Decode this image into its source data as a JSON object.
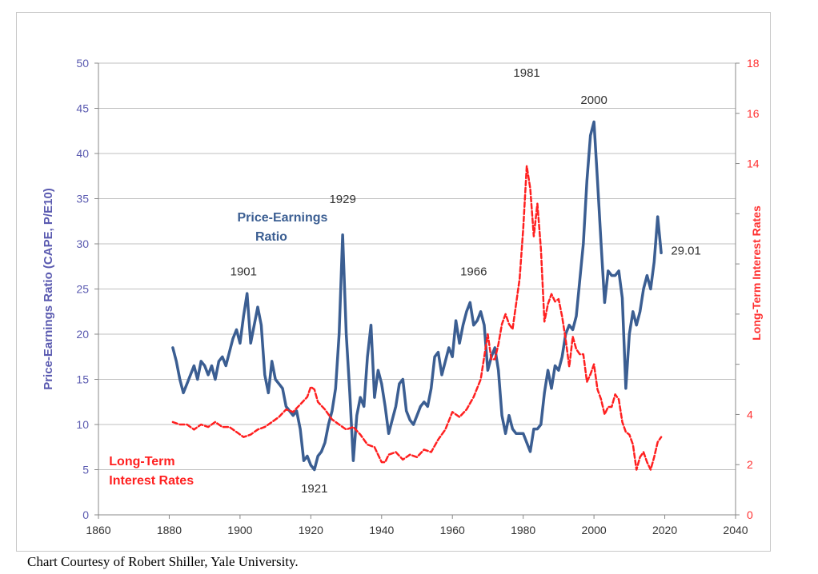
{
  "colors": {
    "pe": "#3B5E92",
    "rates": "#FF2020",
    "left_axis": "#5A5AB0",
    "right_axis": "#FF3030",
    "grid": "#BFBFBF",
    "text": "#333333"
  },
  "credit": "Chart Courtesy of Robert Shiller, Yale University.",
  "chart_data": {
    "type": "line",
    "title": "",
    "xlabel": "",
    "ylabel_left": "Price-Earnings Ratio (CAPE, P/E10)",
    "ylabel_right": "Long-Term Interest Rates",
    "xlim": [
      1860,
      2040
    ],
    "ylim_left": [
      0,
      50
    ],
    "ylim_right": [
      0,
      18
    ],
    "x_ticks": [
      1860,
      1880,
      1900,
      1920,
      1940,
      1960,
      1980,
      2000,
      2020,
      2040
    ],
    "y_ticks_left": [
      0,
      5,
      10,
      15,
      20,
      25,
      30,
      35,
      40,
      45,
      50
    ],
    "y_ticks_right": [
      0,
      2,
      4,
      6,
      8,
      10,
      12,
      14,
      16,
      18
    ],
    "y_ticks_right_labels": [
      "0",
      "2",
      "4",
      "",
      "",
      "",
      "",
      "14",
      "16",
      "18"
    ],
    "grid": true,
    "series": [
      {
        "name": "Price-Earnings Ratio",
        "axis": "left",
        "style": "solid",
        "points": [
          [
            1881,
            18.5
          ],
          [
            1882,
            17
          ],
          [
            1883,
            15
          ],
          [
            1884,
            13.5
          ],
          [
            1885,
            14.5
          ],
          [
            1886,
            15.5
          ],
          [
            1887,
            16.5
          ],
          [
            1888,
            15
          ],
          [
            1889,
            17
          ],
          [
            1890,
            16.5
          ],
          [
            1891,
            15.5
          ],
          [
            1892,
            16.5
          ],
          [
            1893,
            15
          ],
          [
            1894,
            17
          ],
          [
            1895,
            17.5
          ],
          [
            1896,
            16.5
          ],
          [
            1897,
            18
          ],
          [
            1898,
            19.5
          ],
          [
            1899,
            20.5
          ],
          [
            1900,
            19
          ],
          [
            1901,
            22
          ],
          [
            1902,
            24.5
          ],
          [
            1903,
            19
          ],
          [
            1904,
            21
          ],
          [
            1905,
            23
          ],
          [
            1906,
            21
          ],
          [
            1907,
            15.5
          ],
          [
            1908,
            13.5
          ],
          [
            1909,
            17
          ],
          [
            1910,
            15
          ],
          [
            1911,
            14.5
          ],
          [
            1912,
            14
          ],
          [
            1913,
            12
          ],
          [
            1914,
            11.5
          ],
          [
            1915,
            11
          ],
          [
            1916,
            11.5
          ],
          [
            1917,
            9.5
          ],
          [
            1918,
            6
          ],
          [
            1919,
            6.5
          ],
          [
            1920,
            5.5
          ],
          [
            1921,
            5
          ],
          [
            1922,
            6.5
          ],
          [
            1923,
            7
          ],
          [
            1924,
            8
          ],
          [
            1925,
            10
          ],
          [
            1926,
            11.5
          ],
          [
            1927,
            14
          ],
          [
            1928,
            20
          ],
          [
            1929,
            31
          ],
          [
            1930,
            20
          ],
          [
            1931,
            13.5
          ],
          [
            1932,
            6
          ],
          [
            1933,
            11
          ],
          [
            1934,
            13
          ],
          [
            1935,
            12
          ],
          [
            1936,
            17.5
          ],
          [
            1937,
            21
          ],
          [
            1938,
            13
          ],
          [
            1939,
            16
          ],
          [
            1940,
            14.5
          ],
          [
            1941,
            12
          ],
          [
            1942,
            9
          ],
          [
            1943,
            10.5
          ],
          [
            1944,
            12
          ],
          [
            1945,
            14.5
          ],
          [
            1946,
            15
          ],
          [
            1947,
            11.5
          ],
          [
            1948,
            10.5
          ],
          [
            1949,
            10
          ],
          [
            1950,
            11
          ],
          [
            1951,
            12
          ],
          [
            1952,
            12.5
          ],
          [
            1953,
            12
          ],
          [
            1954,
            14
          ],
          [
            1955,
            17.5
          ],
          [
            1956,
            18
          ],
          [
            1957,
            15.5
          ],
          [
            1958,
            17
          ],
          [
            1959,
            18.5
          ],
          [
            1960,
            17.5
          ],
          [
            1961,
            21.5
          ],
          [
            1962,
            19
          ],
          [
            1963,
            21
          ],
          [
            1964,
            22.5
          ],
          [
            1965,
            23.5
          ],
          [
            1966,
            21
          ],
          [
            1967,
            21.5
          ],
          [
            1968,
            22.5
          ],
          [
            1969,
            21
          ],
          [
            1970,
            16
          ],
          [
            1971,
            17.5
          ],
          [
            1972,
            18.5
          ],
          [
            1973,
            16
          ],
          [
            1974,
            11
          ],
          [
            1975,
            9
          ],
          [
            1976,
            11
          ],
          [
            1977,
            9.5
          ],
          [
            1978,
            9
          ],
          [
            1979,
            9
          ],
          [
            1980,
            9
          ],
          [
            1981,
            8
          ],
          [
            1982,
            7
          ],
          [
            1983,
            9.5
          ],
          [
            1984,
            9.5
          ],
          [
            1985,
            10
          ],
          [
            1986,
            13.5
          ],
          [
            1987,
            16
          ],
          [
            1988,
            14
          ],
          [
            1989,
            16.5
          ],
          [
            1990,
            16
          ],
          [
            1991,
            17.5
          ],
          [
            1992,
            20
          ],
          [
            1993,
            21
          ],
          [
            1994,
            20.5
          ],
          [
            1995,
            22
          ],
          [
            1996,
            26
          ],
          [
            1997,
            30
          ],
          [
            1998,
            37
          ],
          [
            1999,
            42
          ],
          [
            2000,
            43.5
          ],
          [
            2001,
            37
          ],
          [
            2002,
            30
          ],
          [
            2003,
            23.5
          ],
          [
            2004,
            27
          ],
          [
            2005,
            26.5
          ],
          [
            2006,
            26.5
          ],
          [
            2007,
            27
          ],
          [
            2008,
            24
          ],
          [
            2009,
            14
          ],
          [
            2010,
            20
          ],
          [
            2011,
            22.5
          ],
          [
            2012,
            21
          ],
          [
            2013,
            22.5
          ],
          [
            2014,
            25
          ],
          [
            2015,
            26.5
          ],
          [
            2016,
            25
          ],
          [
            2017,
            28
          ],
          [
            2018,
            33
          ],
          [
            2019,
            29
          ]
        ]
      },
      {
        "name": "Long-Term Interest Rates",
        "axis": "right",
        "style": "dashed",
        "points": [
          [
            1881,
            3.7
          ],
          [
            1883,
            3.6
          ],
          [
            1885,
            3.6
          ],
          [
            1887,
            3.4
          ],
          [
            1889,
            3.6
          ],
          [
            1891,
            3.5
          ],
          [
            1893,
            3.7
          ],
          [
            1895,
            3.5
          ],
          [
            1897,
            3.5
          ],
          [
            1899,
            3.3
          ],
          [
            1901,
            3.1
          ],
          [
            1903,
            3.2
          ],
          [
            1905,
            3.4
          ],
          [
            1907,
            3.5
          ],
          [
            1909,
            3.7
          ],
          [
            1911,
            3.9
          ],
          [
            1913,
            4.2
          ],
          [
            1915,
            4.1
          ],
          [
            1917,
            4.4
          ],
          [
            1919,
            4.7
          ],
          [
            1920,
            5.1
          ],
          [
            1921,
            5.0
          ],
          [
            1922,
            4.5
          ],
          [
            1924,
            4.2
          ],
          [
            1926,
            3.8
          ],
          [
            1928,
            3.6
          ],
          [
            1930,
            3.4
          ],
          [
            1932,
            3.5
          ],
          [
            1934,
            3.2
          ],
          [
            1936,
            2.8
          ],
          [
            1938,
            2.7
          ],
          [
            1940,
            2.1
          ],
          [
            1941,
            2.1
          ],
          [
            1942,
            2.4
          ],
          [
            1944,
            2.5
          ],
          [
            1946,
            2.2
          ],
          [
            1948,
            2.4
          ],
          [
            1950,
            2.3
          ],
          [
            1952,
            2.6
          ],
          [
            1954,
            2.5
          ],
          [
            1956,
            3.0
          ],
          [
            1958,
            3.4
          ],
          [
            1960,
            4.1
          ],
          [
            1962,
            3.9
          ],
          [
            1964,
            4.2
          ],
          [
            1966,
            4.7
          ],
          [
            1968,
            5.4
          ],
          [
            1970,
            7.2
          ],
          [
            1971,
            6.2
          ],
          [
            1972,
            6.2
          ],
          [
            1973,
            6.8
          ],
          [
            1974,
            7.6
          ],
          [
            1975,
            8.0
          ],
          [
            1976,
            7.6
          ],
          [
            1977,
            7.4
          ],
          [
            1978,
            8.4
          ],
          [
            1979,
            9.4
          ],
          [
            1980,
            11.4
          ],
          [
            1981,
            13.9
          ],
          [
            1982,
            13.0
          ],
          [
            1983,
            11.1
          ],
          [
            1984,
            12.4
          ],
          [
            1985,
            10.6
          ],
          [
            1986,
            7.7
          ],
          [
            1987,
            8.4
          ],
          [
            1988,
            8.8
          ],
          [
            1989,
            8.5
          ],
          [
            1990,
            8.6
          ],
          [
            1991,
            7.9
          ],
          [
            1992,
            7.0
          ],
          [
            1993,
            5.9
          ],
          [
            1994,
            7.1
          ],
          [
            1995,
            6.6
          ],
          [
            1996,
            6.4
          ],
          [
            1997,
            6.4
          ],
          [
            1998,
            5.3
          ],
          [
            1999,
            5.6
          ],
          [
            2000,
            6.0
          ],
          [
            2001,
            5.0
          ],
          [
            2002,
            4.6
          ],
          [
            2003,
            4.0
          ],
          [
            2004,
            4.3
          ],
          [
            2005,
            4.3
          ],
          [
            2006,
            4.8
          ],
          [
            2007,
            4.6
          ],
          [
            2008,
            3.7
          ],
          [
            2009,
            3.3
          ],
          [
            2010,
            3.2
          ],
          [
            2011,
            2.8
          ],
          [
            2012,
            1.8
          ],
          [
            2013,
            2.3
          ],
          [
            2014,
            2.5
          ],
          [
            2015,
            2.1
          ],
          [
            2016,
            1.8
          ],
          [
            2017,
            2.3
          ],
          [
            2018,
            2.9
          ],
          [
            2019,
            3.1
          ]
        ]
      }
    ],
    "annotations": [
      {
        "text": "1901",
        "x": 1901,
        "y": 26.5
      },
      {
        "text": "1921",
        "x": 1921,
        "y": 2.5
      },
      {
        "text": "1929",
        "x": 1929,
        "y": 34.5
      },
      {
        "text": "1966",
        "x": 1966,
        "y": 26.5
      },
      {
        "text": "1981",
        "x": 1981,
        "y": 48.5
      },
      {
        "text": "2000",
        "x": 2000,
        "y": 45.5
      },
      {
        "text": "29.01",
        "x": 2026,
        "y": 28.8
      }
    ],
    "series_labels": [
      {
        "lines": [
          "Price-Earnings",
          "Ratio"
        ],
        "x": 1912,
        "y": 32.5,
        "color_key": "pe"
      },
      {
        "lines": [
          "Long-Term",
          "Interest Rates"
        ],
        "x": 1863,
        "y": 5.5,
        "color_key": "rates"
      }
    ]
  }
}
